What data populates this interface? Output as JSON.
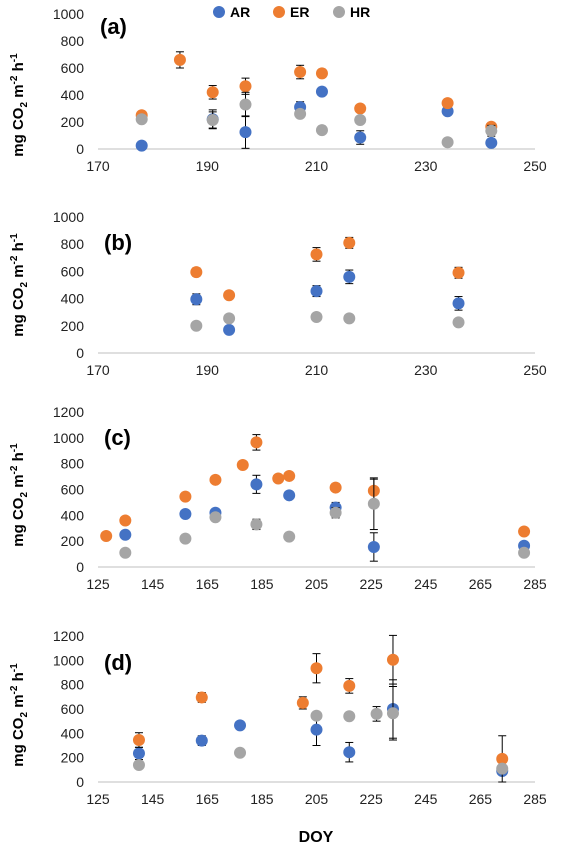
{
  "legend": {
    "items": [
      {
        "label": "AR",
        "color": "#4472C4"
      },
      {
        "label": "ER",
        "color": "#ED7D31"
      },
      {
        "label": "HR",
        "color": "#A5A5A5"
      }
    ],
    "placement": "top-center"
  },
  "ylabel_parts": {
    "main": "mg CO",
    "sub": "2",
    "mid": " m",
    "sup1": "-2",
    "h": " h",
    "sup2": "-1"
  },
  "xlabel": "DOY",
  "chart_data": [
    {
      "type": "scatter",
      "panel_label": "(a)",
      "xlim": [
        170,
        250
      ],
      "ylim": [
        0,
        1000
      ],
      "xticks": [
        "170",
        "190",
        "210",
        "230",
        "250"
      ],
      "yticks": [
        "0",
        "200",
        "400",
        "600",
        "800",
        "1000"
      ],
      "grid": false,
      "series": [
        {
          "name": "AR",
          "color": "#4472C4",
          "points": [
            {
              "x": 178,
              "y": 25
            },
            {
              "x": 191,
              "y": 220,
              "err": 70
            },
            {
              "x": 197,
              "y": 125,
              "err": 120
            },
            {
              "x": 207,
              "y": 310,
              "err": 40
            },
            {
              "x": 211,
              "y": 425
            },
            {
              "x": 218,
              "y": 85,
              "err": 50
            },
            {
              "x": 234,
              "y": 280
            },
            {
              "x": 242,
              "y": 45
            }
          ]
        },
        {
          "name": "ER",
          "color": "#ED7D31",
          "points": [
            {
              "x": 178,
              "y": 250
            },
            {
              "x": 185,
              "y": 660,
              "err": 60
            },
            {
              "x": 191,
              "y": 420,
              "err": 50
            },
            {
              "x": 197,
              "y": 465,
              "err": 60
            },
            {
              "x": 207,
              "y": 570,
              "err": 50
            },
            {
              "x": 211,
              "y": 560,
              "err": 30
            },
            {
              "x": 218,
              "y": 300
            },
            {
              "x": 234,
              "y": 340
            },
            {
              "x": 242,
              "y": 165
            }
          ]
        },
        {
          "name": "HR",
          "color": "#A5A5A5",
          "points": [
            {
              "x": 178,
              "y": 220
            },
            {
              "x": 191,
              "y": 215,
              "err": 60
            },
            {
              "x": 197,
              "y": 330,
              "err": 90
            },
            {
              "x": 207,
              "y": 260
            },
            {
              "x": 211,
              "y": 140
            },
            {
              "x": 218,
              "y": 215
            },
            {
              "x": 234,
              "y": 50
            },
            {
              "x": 242,
              "y": 135,
              "err": 40
            }
          ]
        }
      ]
    },
    {
      "type": "scatter",
      "panel_label": "(b)",
      "xlim": [
        170,
        250
      ],
      "ylim": [
        0,
        1000
      ],
      "xticks": [
        "170",
        "190",
        "210",
        "230",
        "250"
      ],
      "yticks": [
        "0",
        "200",
        "400",
        "600",
        "800",
        "1000"
      ],
      "grid": false,
      "series": [
        {
          "name": "AR",
          "color": "#4472C4",
          "points": [
            {
              "x": 188,
              "y": 395,
              "err": 40
            },
            {
              "x": 194,
              "y": 170
            },
            {
              "x": 210,
              "y": 455,
              "err": 40
            },
            {
              "x": 216,
              "y": 560,
              "err": 50
            },
            {
              "x": 236,
              "y": 365,
              "err": 50
            }
          ]
        },
        {
          "name": "ER",
          "color": "#ED7D31",
          "points": [
            {
              "x": 188,
              "y": 595,
              "err": 30
            },
            {
              "x": 194,
              "y": 425
            },
            {
              "x": 210,
              "y": 725,
              "err": 50
            },
            {
              "x": 216,
              "y": 810,
              "err": 40
            },
            {
              "x": 236,
              "y": 590,
              "err": 40
            }
          ]
        },
        {
          "name": "HR",
          "color": "#A5A5A5",
          "points": [
            {
              "x": 188,
              "y": 200
            },
            {
              "x": 194,
              "y": 255
            },
            {
              "x": 210,
              "y": 265
            },
            {
              "x": 216,
              "y": 255
            },
            {
              "x": 236,
              "y": 225
            }
          ]
        }
      ]
    },
    {
      "type": "scatter",
      "panel_label": "(c)",
      "xlim": [
        125,
        285
      ],
      "ylim": [
        0,
        1200
      ],
      "xticks": [
        "125",
        "145",
        "165",
        "185",
        "205",
        "225",
        "245",
        "265",
        "285"
      ],
      "yticks": [
        "0",
        "200",
        "400",
        "600",
        "800",
        "1000",
        "1200"
      ],
      "grid": false,
      "series": [
        {
          "name": "AR",
          "color": "#4472C4",
          "points": [
            {
              "x": 135,
              "y": 250
            },
            {
              "x": 157,
              "y": 410
            },
            {
              "x": 168,
              "y": 420
            },
            {
              "x": 183,
              "y": 640,
              "err": 70
            },
            {
              "x": 195,
              "y": 555
            },
            {
              "x": 212,
              "y": 460,
              "err": 40
            },
            {
              "x": 226,
              "y": 155,
              "err": 110
            },
            {
              "x": 281,
              "y": 165
            }
          ]
        },
        {
          "name": "ER",
          "color": "#ED7D31",
          "points": [
            {
              "x": 128,
              "y": 240
            },
            {
              "x": 135,
              "y": 360
            },
            {
              "x": 157,
              "y": 545
            },
            {
              "x": 168,
              "y": 675
            },
            {
              "x": 178,
              "y": 790
            },
            {
              "x": 183,
              "y": 965,
              "err": 60
            },
            {
              "x": 191,
              "y": 685
            },
            {
              "x": 195,
              "y": 705
            },
            {
              "x": 212,
              "y": 615,
              "err": 30
            },
            {
              "x": 226,
              "y": 590,
              "err": 90
            },
            {
              "x": 281,
              "y": 275
            }
          ]
        },
        {
          "name": "HR",
          "color": "#A5A5A5",
          "points": [
            {
              "x": 135,
              "y": 110
            },
            {
              "x": 157,
              "y": 220
            },
            {
              "x": 168,
              "y": 385
            },
            {
              "x": 183,
              "y": 330,
              "err": 40
            },
            {
              "x": 195,
              "y": 235
            },
            {
              "x": 212,
              "y": 420,
              "err": 40
            },
            {
              "x": 226,
              "y": 490,
              "err": 200
            },
            {
              "x": 281,
              "y": 110
            }
          ]
        }
      ]
    },
    {
      "type": "scatter",
      "panel_label": "(d)",
      "xlim": [
        125,
        285
      ],
      "ylim": [
        0,
        1200
      ],
      "xticks": [
        "125",
        "145",
        "165",
        "185",
        "205",
        "225",
        "245",
        "265",
        "285"
      ],
      "yticks": [
        "0",
        "200",
        "400",
        "600",
        "800",
        "1000",
        "1200"
      ],
      "grid": false,
      "series": [
        {
          "name": "AR",
          "color": "#4472C4",
          "points": [
            {
              "x": 140,
              "y": 235,
              "err": 50
            },
            {
              "x": 163,
              "y": 340,
              "err": 40
            },
            {
              "x": 177,
              "y": 465
            },
            {
              "x": 205,
              "y": 430,
              "err": 130
            },
            {
              "x": 217,
              "y": 245,
              "err": 80
            },
            {
              "x": 233,
              "y": 600,
              "err": 240
            },
            {
              "x": 273,
              "y": 90
            }
          ]
        },
        {
          "name": "ER",
          "color": "#ED7D31",
          "points": [
            {
              "x": 140,
              "y": 345,
              "err": 60
            },
            {
              "x": 163,
              "y": 695,
              "err": 40
            },
            {
              "x": 200,
              "y": 650,
              "err": 50
            },
            {
              "x": 205,
              "y": 935,
              "err": 120
            },
            {
              "x": 217,
              "y": 790,
              "err": 60
            },
            {
              "x": 233,
              "y": 1005,
              "err": 200
            },
            {
              "x": 273,
              "y": 190,
              "err": 190
            }
          ]
        },
        {
          "name": "HR",
          "color": "#A5A5A5",
          "points": [
            {
              "x": 140,
              "y": 140
            },
            {
              "x": 177,
              "y": 240
            },
            {
              "x": 205,
              "y": 545
            },
            {
              "x": 217,
              "y": 540
            },
            {
              "x": 227,
              "y": 560,
              "err": 60
            },
            {
              "x": 233,
              "y": 565,
              "err": 220
            },
            {
              "x": 273,
              "y": 110
            }
          ]
        }
      ]
    }
  ]
}
